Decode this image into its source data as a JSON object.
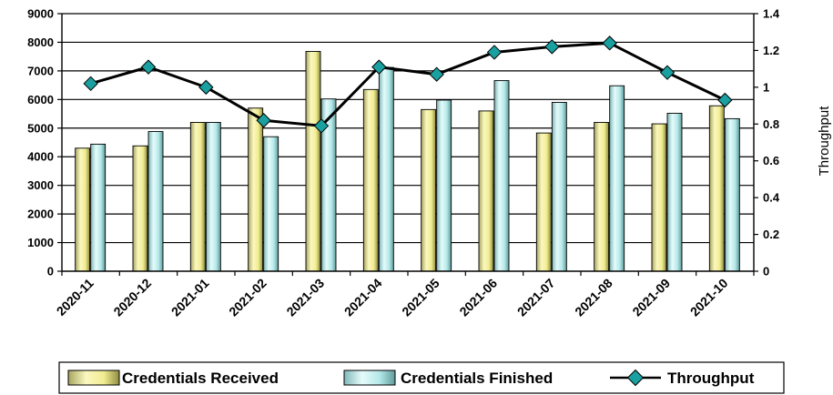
{
  "chart_data": {
    "type": "bar",
    "categories": [
      "2020-11",
      "2020-12",
      "2021-01",
      "2021-02",
      "2021-03",
      "2021-04",
      "2021-05",
      "2021-06",
      "2021-07",
      "2021-08",
      "2021-09",
      "2021-10"
    ],
    "series": [
      {
        "name": "Credentials Received",
        "type": "bar",
        "axis": "left",
        "values": [
          4300,
          4380,
          5200,
          5700,
          7680,
          6350,
          5650,
          5600,
          4830,
          5200,
          5150,
          5780
        ],
        "color": "#f3f0a0"
      },
      {
        "name": "Credentials Finished",
        "type": "bar",
        "axis": "left",
        "values": [
          4440,
          4880,
          5200,
          4700,
          6020,
          7120,
          5980,
          6660,
          5900,
          6480,
          5520,
          5330
        ],
        "color": "#bfeeee"
      },
      {
        "name": "Throughput",
        "type": "line",
        "axis": "right",
        "values": [
          1.02,
          1.11,
          1.0,
          0.82,
          0.79,
          1.11,
          1.07,
          1.19,
          1.22,
          1.24,
          1.08,
          0.93
        ],
        "color": "#000000",
        "marker_color": "#1aa0a0"
      }
    ],
    "y_left": {
      "ticks": [
        "0",
        "1000",
        "2000",
        "3000",
        "4000",
        "5000",
        "6000",
        "7000",
        "8000",
        "9000"
      ],
      "ylim": [
        0,
        9000
      ]
    },
    "y_right": {
      "label": "Throughput",
      "ticks": [
        "0",
        "0.2",
        "0.4",
        "0.6",
        "0.8",
        "1",
        "1.2",
        "1.4"
      ],
      "ylim": [
        0,
        1.4
      ]
    },
    "grid": "horizontal",
    "legend": {
      "position": "bottom",
      "entries": [
        "Credentials Received",
        "Credentials Finished",
        "Throughput"
      ]
    }
  }
}
